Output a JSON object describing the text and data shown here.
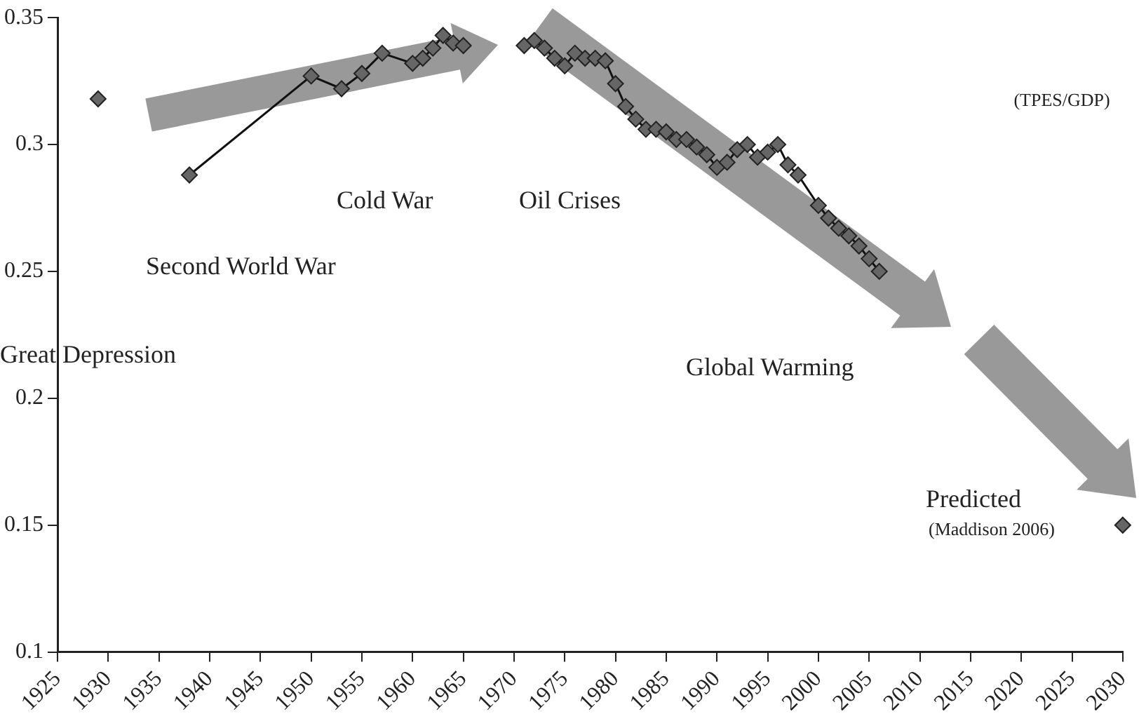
{
  "chart_data": {
    "type": "line",
    "xlim": [
      1925,
      2030
    ],
    "xticks": [
      1925,
      1930,
      1935,
      1940,
      1945,
      1950,
      1955,
      1960,
      1965,
      1970,
      1975,
      1980,
      1985,
      1990,
      1995,
      2000,
      2005,
      2010,
      2015,
      2020,
      2025,
      2030
    ],
    "ylim": [
      0.1,
      0.35
    ],
    "yticks": [
      0.1,
      0.15,
      0.2,
      0.25,
      0.3,
      0.35
    ],
    "grid": false,
    "legend": false,
    "marker": "diamond",
    "line_style": "solid",
    "annotations": [
      "(TPES/GDP)",
      "Cold War",
      "Oil Crises",
      "Second World War",
      "Great Depression",
      "Global Warming",
      "Predicted",
      "(Maddison 2006)"
    ],
    "series": [
      {
        "type": "scatter",
        "color": "#666666",
        "x": [
          1929
        ],
        "values": [
          0.318
        ]
      },
      {
        "color": "#666666",
        "x": [
          1938,
          1950,
          1953,
          1955,
          1957,
          1960,
          1961,
          1962,
          1963,
          1964,
          1965
        ],
        "values": [
          0.288,
          0.327,
          0.322,
          0.328,
          0.336,
          0.332,
          0.334,
          0.338,
          0.343,
          0.34,
          0.339
        ]
      },
      {
        "color": "#666666",
        "x": [
          1971,
          1972,
          1973,
          1974,
          1975,
          1976,
          1977,
          1978,
          1979,
          1980,
          1981,
          1982,
          1983,
          1984,
          1985,
          1986,
          1987,
          1988,
          1989,
          1990,
          1991,
          1992,
          1993,
          1994,
          1995,
          1996,
          1997,
          1998,
          2000,
          2001,
          2002,
          2003,
          2004,
          2005,
          2006
        ],
        "values": [
          0.339,
          0.341,
          0.338,
          0.334,
          0.331,
          0.336,
          0.334,
          0.334,
          0.333,
          0.324,
          0.315,
          0.31,
          0.306,
          0.306,
          0.305,
          0.302,
          0.302,
          0.299,
          0.296,
          0.291,
          0.293,
          0.298,
          0.3,
          0.295,
          0.297,
          0.3,
          0.292,
          0.288,
          0.276,
          0.271,
          0.267,
          0.264,
          0.26,
          0.255,
          0.25
        ]
      },
      {
        "type": "scatter",
        "color": "#666666",
        "x": [
          2030
        ],
        "values": [
          0.15
        ]
      }
    ]
  }
}
